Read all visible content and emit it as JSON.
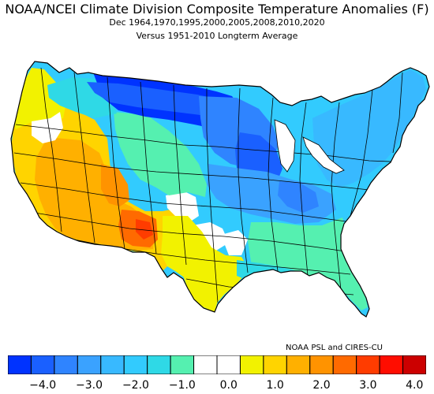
{
  "header": {
    "title": "NOAA/NCEI Climate Division Composite Temperature Anomalies (F)",
    "subtitle_1": "Dec  1964,1970,1995,2000,2005,2008,2010,2020",
    "subtitle_2": "Versus 1951-2010 Longterm Average"
  },
  "credit": "NOAA PSL and CIRES-CU",
  "legend": {
    "unit": "F",
    "bins": [
      -4.5,
      -4.0,
      -3.5,
      -3.0,
      -2.5,
      -2.0,
      -1.5,
      -1.0,
      -0.5,
      0.0,
      0.5,
      1.0,
      1.5,
      2.0,
      2.5,
      3.0,
      3.5,
      4.0
    ],
    "colors": [
      "#0033ff",
      "#1a60ff",
      "#2f84ff",
      "#3aa2ff",
      "#38b9ff",
      "#32cbfe",
      "#2fd9e6",
      "#55f0b0",
      "#ffffff",
      "#ffffff",
      "#f2f200",
      "#ffd400",
      "#ffb000",
      "#ff9300",
      "#ff6a00",
      "#ff3c00",
      "#ff0d00",
      "#cc0000"
    ],
    "tick_labels": [
      {
        "text": "−4.0",
        "value": -4.0
      },
      {
        "text": "−3.0",
        "value": -3.0
      },
      {
        "text": "−2.0",
        "value": -2.0
      },
      {
        "text": "−1.0",
        "value": -1.0
      },
      {
        "text": "0.0",
        "value": 0.0
      },
      {
        "text": "1.0",
        "value": 1.0
      },
      {
        "text": "2.0",
        "value": 2.0
      },
      {
        "text": "3.0",
        "value": 3.0
      },
      {
        "text": "4.0",
        "value": 4.0
      }
    ]
  },
  "map": {
    "regions": [
      {
        "id": "pacific-northwest",
        "anomaly": 1.0
      },
      {
        "id": "great-basin",
        "anomaly": 1.5
      },
      {
        "id": "california",
        "anomaly": 1.5
      },
      {
        "id": "southwest",
        "anomaly": 2.0
      },
      {
        "id": "four-corners",
        "anomaly": 2.5
      },
      {
        "id": "southern-plains",
        "anomaly": 1.0
      },
      {
        "id": "central-plains",
        "anomaly": 0.0
      },
      {
        "id": "northern-rockies",
        "anomaly": -1.5
      },
      {
        "id": "northern-plains",
        "anomaly": -3.5
      },
      {
        "id": "upper-midwest",
        "anomaly": -2.5
      },
      {
        "id": "midwest",
        "anomaly": -3.0
      },
      {
        "id": "ohio-valley",
        "anomaly": -2.0
      },
      {
        "id": "southeast",
        "anomaly": -1.0
      },
      {
        "id": "gulf-coast",
        "anomaly": -1.0
      },
      {
        "id": "mid-atlantic",
        "anomaly": -1.5
      },
      {
        "id": "northeast",
        "anomaly": -1.5
      }
    ]
  }
}
